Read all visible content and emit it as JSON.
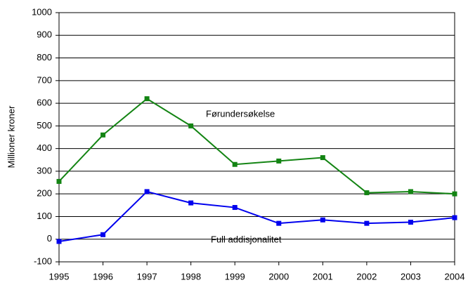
{
  "chart_data": {
    "type": "line",
    "x": [
      1995,
      1996,
      1997,
      1998,
      1999,
      2000,
      2001,
      2002,
      2003,
      2004
    ],
    "xlim": [
      1995,
      2004
    ],
    "xticks": [
      1995,
      1996,
      1997,
      1998,
      1999,
      2000,
      2001,
      2002,
      2003,
      2004
    ],
    "ylim": [
      -100,
      1000
    ],
    "yticks": [
      -100,
      0,
      100,
      200,
      300,
      400,
      500,
      600,
      700,
      800,
      900,
      1000
    ],
    "y_label": "Millioner kroner",
    "grid": true,
    "series": [
      {
        "name": "Førundersøkelse",
        "color": "#138413",
        "values": [
          255,
          460,
          620,
          500,
          330,
          345,
          360,
          205,
          210,
          200
        ]
      },
      {
        "name": "Full addisjonalitet",
        "color": "#0000ee",
        "values": [
          -10,
          20,
          210,
          160,
          140,
          70,
          85,
          70,
          75,
          95
        ]
      }
    ]
  }
}
